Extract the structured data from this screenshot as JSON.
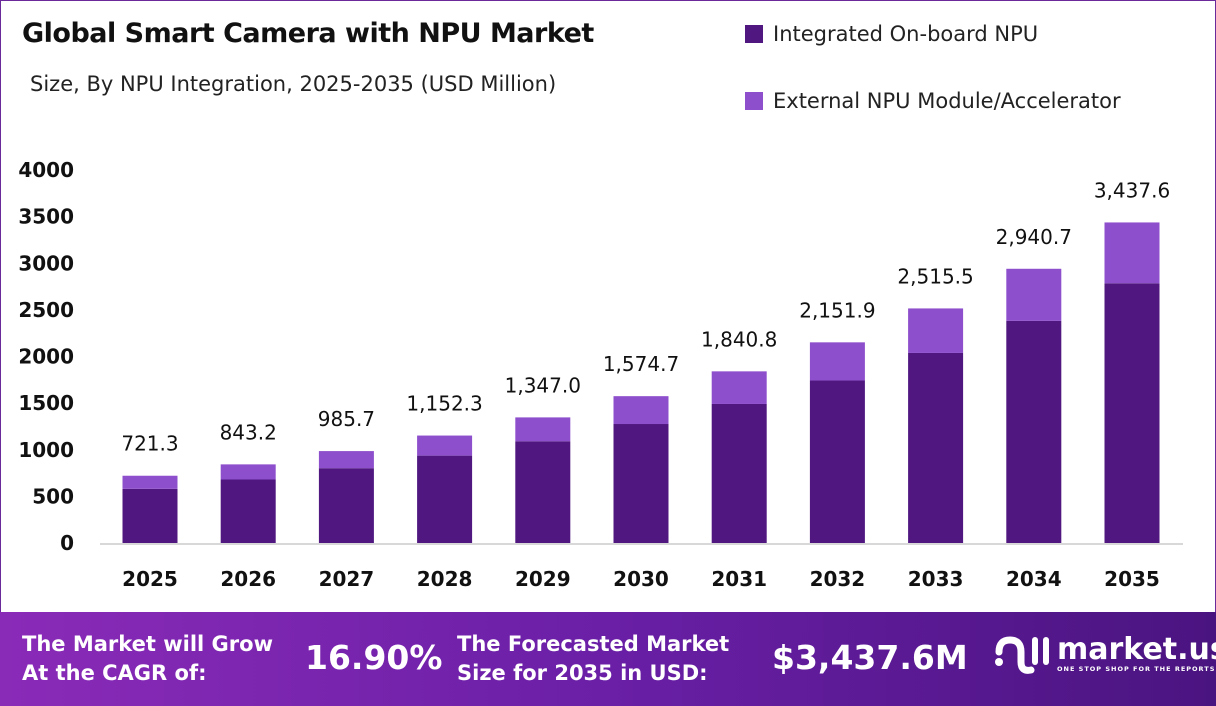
{
  "chart_data": {
    "type": "bar",
    "stacked": true,
    "title": "Global Smart Camera with NPU Market",
    "subtitle": "Size, By NPU Integration, 2025-2035 (USD Million)",
    "categories": [
      "2025",
      "2026",
      "2027",
      "2028",
      "2029",
      "2030",
      "2031",
      "2032",
      "2033",
      "2034",
      "2035"
    ],
    "series": [
      {
        "name": "Integrated On-board NPU",
        "color": "#4f177f",
        "values": [
          581,
          681,
          802,
          937,
          1091,
          1276,
          1491,
          1743,
          2038,
          2382,
          2785
        ]
      },
      {
        "name": "External NPU Module/Accelerator",
        "color": "#8e4fcc",
        "values": [
          140.3,
          162.2,
          183.7,
          215.3,
          256.0,
          298.7,
          349.8,
          408.9,
          477.5,
          558.7,
          652.6
        ]
      }
    ],
    "totals_labels": [
      "721.3",
      "843.2",
      "985.7",
      "1,152.3",
      "1,347.0",
      "1,574.7",
      "1,840.8",
      "2,151.9",
      "2,515.5",
      "2,940.7",
      "3,437.6"
    ],
    "ylim": [
      0,
      4000
    ],
    "yticks": [
      "0",
      "500",
      "1000",
      "1500",
      "2000",
      "2500",
      "3000",
      "3500",
      "4000"
    ],
    "grid": false,
    "legend_position": "top-right"
  },
  "footer": {
    "cagr_label_1": "The Market will Grow",
    "cagr_label_2": "At the CAGR of:",
    "cagr_value": "16.90%",
    "forecast_label_1": "The Forecasted Market",
    "forecast_label_2": "Size for 2035 in USD:",
    "forecast_value": "$3,437.6M",
    "logo_name": "market.us",
    "logo_tagline": "ONE STOP SHOP FOR THE REPORTS"
  }
}
